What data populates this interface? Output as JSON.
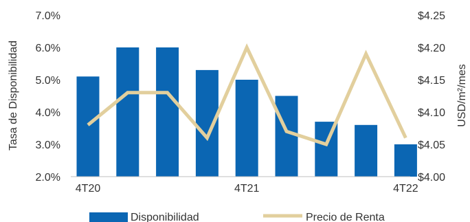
{
  "chart_data": {
    "type": "bar+line",
    "categories": [
      "4T20",
      "",
      "",
      "",
      "4T21",
      "",
      "",
      "",
      "4T22"
    ],
    "x_tick_labels": [
      "4T20",
      "4T21",
      "4T22"
    ],
    "series": [
      {
        "name": "Disponibilidad",
        "type": "bar",
        "axis": "left",
        "color": "#0b66b3",
        "values": [
          5.1,
          6.0,
          6.0,
          5.3,
          5.0,
          4.5,
          3.7,
          3.6,
          3.0
        ]
      },
      {
        "name": "Precio de Renta",
        "type": "line",
        "axis": "right",
        "color": "#e2cf9d",
        "values": [
          4.08,
          4.13,
          4.13,
          4.06,
          4.2,
          4.07,
          4.05,
          4.19,
          4.06
        ]
      }
    ],
    "ylabel_left": "Tasa de Disponibilidad",
    "ylabel_right": "USD/m²/mes",
    "ylim_left": [
      2.0,
      7.0
    ],
    "ylim_right": [
      4.0,
      4.25
    ],
    "yticks_left": [
      "2.0%",
      "3.0%",
      "4.0%",
      "5.0%",
      "6.0%",
      "7.0%"
    ],
    "yticks_right": [
      "$4.00",
      "$4.05",
      "$4.10",
      "$4.15",
      "$4.20",
      "$4.25"
    ],
    "grid": false,
    "legend_position": "bottom"
  }
}
